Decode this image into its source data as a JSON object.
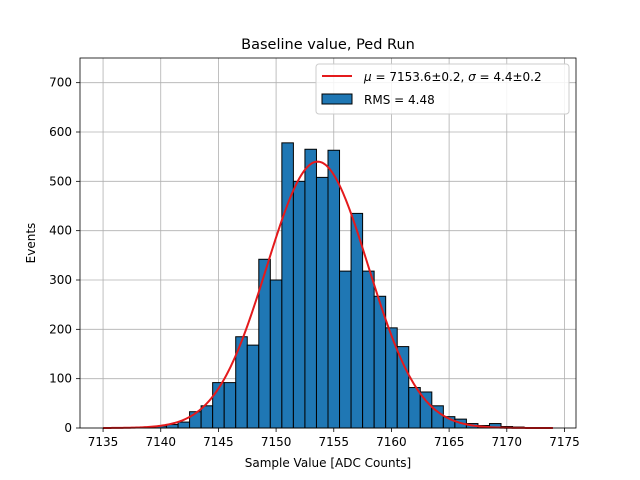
{
  "chart_data": {
    "type": "bar",
    "title": "Baseline value, Ped Run",
    "xlabel": "Sample Value [ADC Counts]",
    "ylabel": "Events",
    "xlim": [
      7133,
      7176
    ],
    "ylim": [
      0,
      750
    ],
    "xticks": [
      7135,
      7140,
      7145,
      7150,
      7155,
      7160,
      7165,
      7170,
      7175
    ],
    "yticks": [
      0,
      100,
      200,
      300,
      400,
      500,
      600,
      700
    ],
    "grid": true,
    "bar_color": "#1f77b4",
    "fit_color": "#e41a1c",
    "histogram": {
      "name": "RMS = 4.48",
      "bins": [
        {
          "left": 7137.5,
          "right": 7138.5,
          "count": 1
        },
        {
          "left": 7138.5,
          "right": 7139.5,
          "count": 2
        },
        {
          "left": 7139.5,
          "right": 7140.5,
          "count": 4
        },
        {
          "left": 7140.5,
          "right": 7141.5,
          "count": 7
        },
        {
          "left": 7141.5,
          "right": 7142.5,
          "count": 12
        },
        {
          "left": 7142.5,
          "right": 7143.5,
          "count": 33
        },
        {
          "left": 7143.5,
          "right": 7144.5,
          "count": 45
        },
        {
          "left": 7144.5,
          "right": 7145.5,
          "count": 92
        },
        {
          "left": 7145.5,
          "right": 7146.5,
          "count": 92
        },
        {
          "left": 7146.5,
          "right": 7147.5,
          "count": 185
        },
        {
          "left": 7147.5,
          "right": 7148.5,
          "count": 168
        },
        {
          "left": 7148.5,
          "right": 7149.5,
          "count": 342
        },
        {
          "left": 7149.5,
          "right": 7150.5,
          "count": 300
        },
        {
          "left": 7150.5,
          "right": 7151.5,
          "count": 578
        },
        {
          "left": 7151.5,
          "right": 7152.5,
          "count": 500
        },
        {
          "left": 7152.5,
          "right": 7153.5,
          "count": 565
        },
        {
          "left": 7153.5,
          "right": 7154.5,
          "count": 508
        },
        {
          "left": 7154.5,
          "right": 7155.5,
          "count": 563
        },
        {
          "left": 7155.5,
          "right": 7156.5,
          "count": 318
        },
        {
          "left": 7156.5,
          "right": 7157.5,
          "count": 435
        },
        {
          "left": 7157.5,
          "right": 7158.5,
          "count": 318
        },
        {
          "left": 7158.5,
          "right": 7159.5,
          "count": 267
        },
        {
          "left": 7159.5,
          "right": 7160.5,
          "count": 203
        },
        {
          "left": 7160.5,
          "right": 7161.5,
          "count": 165
        },
        {
          "left": 7161.5,
          "right": 7162.5,
          "count": 82
        },
        {
          "left": 7162.5,
          "right": 7163.5,
          "count": 73
        },
        {
          "left": 7163.5,
          "right": 7164.5,
          "count": 45
        },
        {
          "left": 7164.5,
          "right": 7165.5,
          "count": 23
        },
        {
          "left": 7165.5,
          "right": 7166.5,
          "count": 18
        },
        {
          "left": 7166.5,
          "right": 7167.5,
          "count": 9
        },
        {
          "left": 7167.5,
          "right": 7168.5,
          "count": 5
        },
        {
          "left": 7168.5,
          "right": 7169.5,
          "count": 9
        },
        {
          "left": 7169.5,
          "right": 7170.5,
          "count": 3
        },
        {
          "left": 7170.5,
          "right": 7171.5,
          "count": 2
        },
        {
          "left": 7171.5,
          "right": 7172.5,
          "count": 1
        }
      ]
    },
    "fit": {
      "type": "gaussian",
      "name_parts": {
        "mu_symbol": "μ",
        "mu_text": " = 7153.6±0.2, ",
        "sigma_symbol": "σ",
        "sigma_text": " = 4.4±0.2"
      },
      "mu": 7153.6,
      "sigma": 4.4,
      "amplitude": 540,
      "x_range": [
        7135,
        7174
      ]
    },
    "legend_position": "top-right"
  }
}
